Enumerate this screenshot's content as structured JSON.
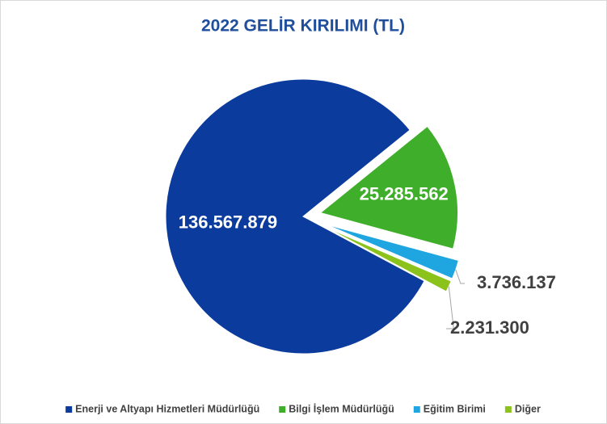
{
  "chart_data": {
    "type": "pie",
    "title": "2022 GELİR KIRILIMI (TL)",
    "categories": [
      "Enerji ve Altyapı Hizmetleri Müdürlüğü",
      "Bilgi İşlem Müdürlüğü",
      "Eğitim Birimi",
      "Diğer"
    ],
    "values": [
      136567879,
      25285562,
      3736137,
      2231300
    ],
    "value_labels": [
      "136.567.879",
      "25.285.562",
      "3.736.137",
      "2.231.300"
    ],
    "colors": [
      "#0b3b9c",
      "#3fae2a",
      "#1fa6e0",
      "#8cc21c"
    ],
    "legend": "bottom"
  }
}
